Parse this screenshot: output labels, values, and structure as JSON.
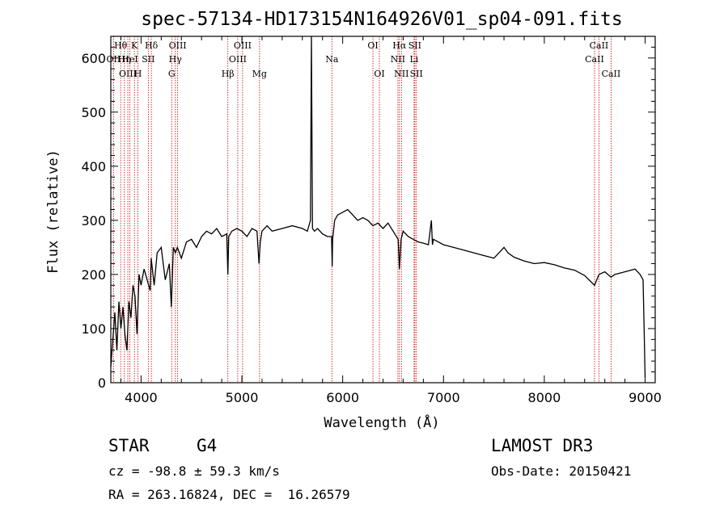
{
  "chart_data": {
    "type": "line",
    "title": "spec-57134-HD173154N164926V01_sp04-091.fits",
    "xlabel": "Wavelength (Å)",
    "ylabel": "Flux (relative)",
    "xlim": [
      3700,
      9100
    ],
    "ylim": [
      0,
      640
    ],
    "xticks": [
      4000,
      5000,
      6000,
      7000,
      8000,
      9000
    ],
    "yticks": [
      0,
      100,
      200,
      300,
      400,
      500,
      600
    ],
    "series": [
      {
        "name": "flux",
        "x": [
          3700,
          3720,
          3740,
          3760,
          3780,
          3800,
          3820,
          3840,
          3860,
          3880,
          3900,
          3920,
          3940,
          3960,
          3980,
          4000,
          4030,
          4060,
          4090,
          4100,
          4130,
          4160,
          4200,
          4240,
          4280,
          4300,
          4320,
          4340,
          4360,
          4400,
          4450,
          4500,
          4550,
          4600,
          4650,
          4700,
          4750,
          4800,
          4850,
          4861,
          4870,
          4900,
          4950,
          5000,
          5050,
          5100,
          5150,
          5170,
          5183,
          5200,
          5250,
          5300,
          5400,
          5500,
          5600,
          5650,
          5680,
          5690,
          5700,
          5720,
          5750,
          5800,
          5850,
          5890,
          5896,
          5900,
          5920,
          5950,
          6000,
          6050,
          6100,
          6150,
          6200,
          6250,
          6300,
          6350,
          6400,
          6450,
          6500,
          6550,
          6563,
          6580,
          6600,
          6650,
          6700,
          6750,
          6800,
          6850,
          6880,
          6890,
          6900,
          6950,
          7000,
          7100,
          7200,
          7300,
          7400,
          7500,
          7600,
          7640,
          7700,
          7800,
          7900,
          8000,
          8100,
          8200,
          8300,
          8400,
          8498,
          8542,
          8600,
          8662,
          8700,
          8800,
          8900,
          8950,
          8980,
          8990,
          9000
        ],
        "y": [
          30,
          80,
          130,
          60,
          150,
          100,
          140,
          90,
          60,
          150,
          120,
          180,
          160,
          90,
          200,
          180,
          210,
          190,
          170,
          230,
          180,
          240,
          250,
          190,
          220,
          140,
          250,
          240,
          250,
          230,
          260,
          265,
          250,
          270,
          280,
          275,
          285,
          270,
          275,
          200,
          270,
          280,
          285,
          280,
          270,
          285,
          280,
          220,
          260,
          280,
          290,
          280,
          285,
          290,
          285,
          280,
          300,
          640,
          285,
          280,
          285,
          275,
          270,
          270,
          215,
          265,
          300,
          310,
          315,
          320,
          310,
          300,
          305,
          300,
          290,
          295,
          285,
          295,
          280,
          265,
          210,
          265,
          280,
          270,
          265,
          260,
          258,
          255,
          300,
          255,
          265,
          260,
          255,
          250,
          245,
          240,
          235,
          230,
          250,
          240,
          232,
          225,
          220,
          222,
          218,
          212,
          208,
          198,
          180,
          200,
          205,
          195,
          200,
          205,
          210,
          200,
          190,
          100,
          10
        ]
      }
    ],
    "spectral_lines": [
      {
        "label": "OII",
        "x": 3727,
        "row": 1
      },
      {
        "label": "Hθ",
        "x": 3798,
        "row": 0
      },
      {
        "label": "Hη",
        "x": 3835,
        "row": 1
      },
      {
        "label": "OIII",
        "x": 3869,
        "row": 2
      },
      {
        "label": "HeI",
        "x": 3889,
        "row": 1
      },
      {
        "label": "K",
        "x": 3934,
        "row": 0
      },
      {
        "label": "H",
        "x": 3969,
        "row": 2
      },
      {
        "label": "SII",
        "x": 4072,
        "row": 1
      },
      {
        "label": "Hδ",
        "x": 4102,
        "row": 0
      },
      {
        "label": "G",
        "x": 4304,
        "row": 2
      },
      {
        "label": "Hγ",
        "x": 4340,
        "row": 1
      },
      {
        "label": "OIII",
        "x": 4363,
        "row": 0
      },
      {
        "label": "Hβ",
        "x": 4861,
        "row": 2
      },
      {
        "label": "OIII",
        "x": 4959,
        "row": 1
      },
      {
        "label": "OIII",
        "x": 5007,
        "row": 0
      },
      {
        "label": "Mg",
        "x": 5175,
        "row": 2
      },
      {
        "label": "Na",
        "x": 5893,
        "row": 1
      },
      {
        "label": "OI",
        "x": 6300,
        "row": 0
      },
      {
        "label": "OI",
        "x": 6364,
        "row": 2
      },
      {
        "label": "NII",
        "x": 6548,
        "row": 1
      },
      {
        "label": "Hα",
        "x": 6563,
        "row": 0
      },
      {
        "label": "NII",
        "x": 6583,
        "row": 2
      },
      {
        "label": "Li",
        "x": 6708,
        "row": 1
      },
      {
        "label": "SII",
        "x": 6716,
        "row": 0
      },
      {
        "label": "SII",
        "x": 6731,
        "row": 2
      },
      {
        "label": "CaII",
        "x": 8498,
        "row": 1
      },
      {
        "label": "CaII",
        "x": 8542,
        "row": 0
      },
      {
        "label": "CaII",
        "x": 8662,
        "row": 2
      }
    ]
  },
  "info": {
    "object_class": "STAR",
    "subclass": "G4",
    "survey": "LAMOST DR3",
    "redshift": "cz = -98.8 ± 59.3 km/s",
    "obs_date": "Obs-Date: 20150421",
    "coords": "RA = 263.16824, DEC =  16.26579"
  },
  "colors": {
    "line_marker": "#cc0000",
    "spectrum": "#000000"
  }
}
